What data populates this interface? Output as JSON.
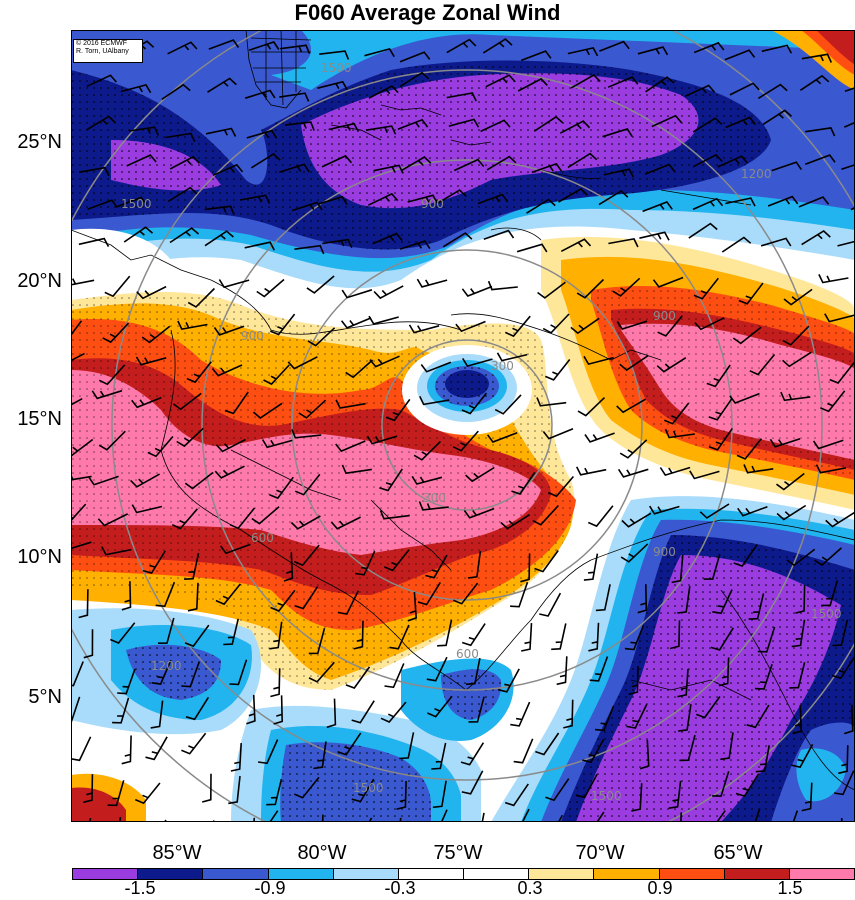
{
  "title": "F060 Average Zonal Wind",
  "credit": {
    "line1": "© 2016 ECMWF",
    "line2": "R. Torn, UAlbany"
  },
  "axes": {
    "lat_labels": [
      "25°N",
      "20°N",
      "15°N",
      "10°N",
      "5°N"
    ],
    "lon_labels": [
      "85°W",
      "80°W",
      "75°W",
      "70°W",
      "65°W"
    ]
  },
  "range_rings": {
    "labels": [
      "300",
      "600",
      "900",
      "1200",
      "1500"
    ]
  },
  "colorbar": {
    "colors": [
      "#9a3ce0",
      "#0d1a8c",
      "#3a58cf",
      "#22b4ee",
      "#a8dcfa",
      "#ffffff",
      "#ffffff",
      "#ffe79a",
      "#ffb000",
      "#ff4e12",
      "#c31d1d",
      "#ff7aab"
    ],
    "labels": [
      "-1.5",
      "-0.9",
      "-0.3",
      "0.3",
      "0.9",
      "1.5"
    ]
  },
  "field_colors": {
    "purple": "#9a3ce0",
    "navy": "#0d1a8c",
    "blue": "#3a58cf",
    "sky": "#22b4ee",
    "pale": "#a8dcfa",
    "white": "#ffffff",
    "yellow": "#ffe79a",
    "orange": "#ffb000",
    "redorange": "#ff4e12",
    "red": "#c31d1d",
    "pink": "#ff7aab"
  }
}
